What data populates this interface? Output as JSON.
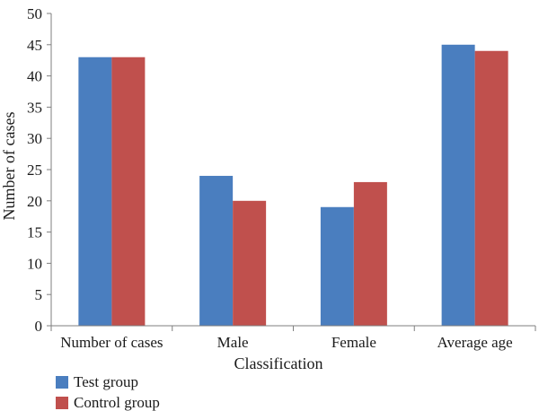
{
  "chart_data": {
    "type": "bar",
    "title": "",
    "xlabel": "Classification",
    "ylabel": "Number of cases",
    "ylim": [
      0,
      50
    ],
    "yticks": [
      0,
      5,
      10,
      15,
      20,
      25,
      30,
      35,
      40,
      45,
      50
    ],
    "categories": [
      "Number of cases",
      "Male",
      "Female",
      "Average age"
    ],
    "series": [
      {
        "name": "Test group",
        "color": "#4a7ebf",
        "values": [
          43,
          24,
          19,
          45
        ]
      },
      {
        "name": "Control group",
        "color": "#c0504d",
        "values": [
          43,
          20,
          23,
          44
        ]
      }
    ],
    "grid": false,
    "legend": "bottom-left"
  }
}
